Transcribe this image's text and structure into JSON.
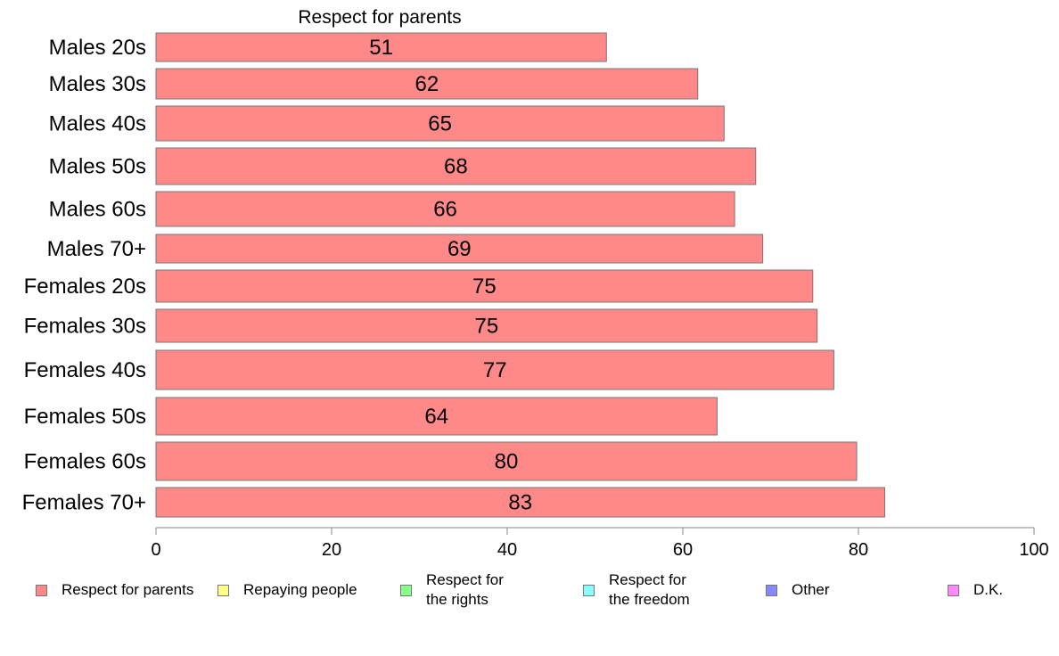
{
  "chart_data": {
    "type": "bar",
    "orientation": "horizontal",
    "title": "Respect for parents",
    "categories": [
      "Males 20s",
      "Males 30s",
      "Males 40s",
      "Males 50s",
      "Males 60s",
      "Males 70+",
      "Females 20s",
      "Females 30s",
      "Females 40s",
      "Females 50s",
      "Females 60s",
      "Females 70+"
    ],
    "values": [
      51.3,
      61.7,
      64.7,
      68.3,
      65.9,
      69.1,
      74.8,
      75.3,
      77.2,
      63.9,
      79.8,
      83.0
    ],
    "data_labels": [
      "51",
      "62",
      "65",
      "68",
      "66",
      "69",
      "75",
      "75",
      "77",
      "64",
      "80",
      "83"
    ],
    "xlim": [
      0,
      100
    ],
    "xticks": [
      "0",
      "20",
      "40",
      "60",
      "80",
      "100"
    ],
    "bar_color": "#ff8888",
    "grid": false,
    "legend_position": "bottom",
    "legend": [
      {
        "label": "Respect for parents",
        "color": "#ff8888"
      },
      {
        "label": "Repaying people",
        "color": "#ffff88"
      },
      {
        "label": "Respect for\nthe rights",
        "color": "#88ff88"
      },
      {
        "label": "Respect for\nthe freedom",
        "color": "#88ffff"
      },
      {
        "label": "Other",
        "color": "#8888ff"
      },
      {
        "label": "D.K.",
        "color": "#ff88ff"
      }
    ]
  }
}
